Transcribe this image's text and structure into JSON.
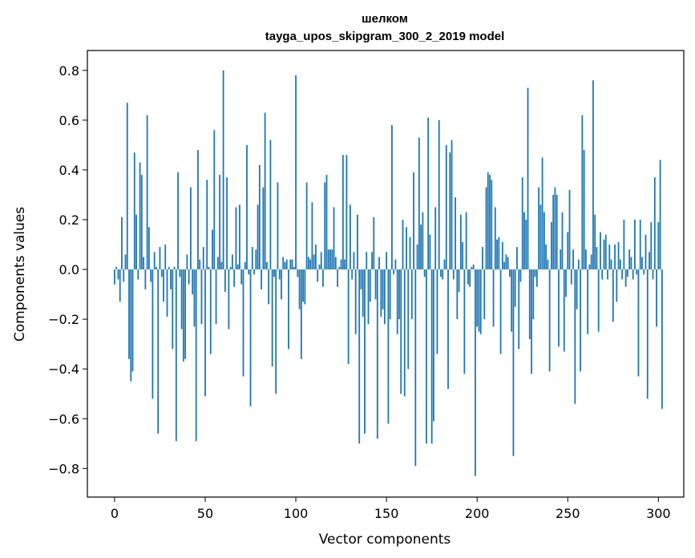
{
  "chart_data": {
    "type": "bar",
    "title": "шелком",
    "subtitle": "tayga_upos_skipgram_300_2_2019 model",
    "xlabel": "Vector components",
    "ylabel": "Components values",
    "xlim": [
      -15,
      314
    ],
    "ylim": [
      -0.915,
      0.88
    ],
    "xticks": [
      0,
      50,
      100,
      150,
      200,
      250,
      300
    ],
    "yticks": [
      -0.8,
      -0.6,
      -0.4,
      -0.2,
      0.0,
      0.2,
      0.4,
      0.6,
      0.8
    ],
    "ytick_labels": [
      "−0.8",
      "−0.6",
      "−0.4",
      "−0.2",
      "0.0",
      "0.2",
      "0.4",
      "0.6",
      "0.8"
    ],
    "grid": false,
    "legend": "none",
    "bar_color": "#1f77b4",
    "values": [
      -0.06,
      0.01,
      -0.04,
      -0.13,
      0.21,
      -0.05,
      0.06,
      0.67,
      -0.36,
      -0.45,
      -0.41,
      0.47,
      0.22,
      -0.04,
      0.43,
      0.38,
      0.05,
      -0.08,
      0.62,
      0.17,
      -0.05,
      -0.52,
      0.07,
      0.01,
      -0.66,
      0.09,
      -0.03,
      -0.13,
      0.1,
      -0.19,
      0.01,
      -0.08,
      -0.32,
      0.01,
      -0.69,
      0.39,
      -0.03,
      -0.24,
      -0.37,
      -0.36,
      0.06,
      -0.06,
      0.33,
      -0.1,
      -0.23,
      -0.69,
      0.48,
      0.04,
      -0.22,
      0.09,
      -0.51,
      0.36,
      0.01,
      -0.34,
      0.16,
      0.56,
      -0.22,
      0.05,
      0.38,
      0.03,
      0.8,
      -0.09,
      0.37,
      -0.24,
      0.01,
      0.06,
      -0.07,
      0.25,
      0.02,
      0.26,
      -0.06,
      -0.43,
      0.03,
      0.5,
      -0.02,
      -0.55,
      0.09,
      -0.02,
      0.08,
      0.26,
      0.42,
      -0.08,
      0.33,
      0.63,
      0.03,
      -0.14,
      0.52,
      -0.39,
      -0.03,
      -0.5,
      0.35,
      -0.04,
      -0.12,
      0.05,
      0.03,
      0.04,
      -0.32,
      0.04,
      0.04,
      0.01,
      0.78,
      -0.03,
      -0.16,
      -0.36,
      -0.13,
      -0.14,
      0.35,
      0.05,
      0.04,
      0.27,
      0.06,
      0.1,
      -0.05,
      0.02,
      0.07,
      -0.07,
      0.35,
      0.38,
      0.08,
      0.08,
      0.08,
      0.25,
      0.05,
      -0.07,
      0.01,
      0.04,
      0.46,
      0.04,
      0.46,
      -0.38,
      0.26,
      -0.04,
      0.07,
      -0.26,
      0.22,
      -0.7,
      -0.08,
      -0.19,
      -0.66,
      0.07,
      -0.22,
      -0.13,
      0.07,
      0.21,
      -0.12,
      -0.68,
      0.05,
      -0.19,
      -0.16,
      -0.22,
      0.07,
      -0.62,
      -0.2,
      0.58,
      -0.02,
      0.04,
      -0.26,
      -0.2,
      -0.5,
      0.2,
      -0.51,
      0.17,
      -0.4,
      0.13,
      -0.2,
      0.39,
      -0.79,
      0.1,
      0.53,
      0.18,
      0.23,
      -0.03,
      -0.7,
      0.61,
      0.14,
      -0.7,
      -0.61,
      0.25,
      -0.34,
      0.6,
      -0.03,
      -0.04,
      0.04,
      0.5,
      -0.48,
      0.47,
      0.52,
      -0.04,
      0.29,
      -0.2,
      -0.09,
      0.22,
      0.11,
      -0.42,
      0.23,
      -0.06,
      -0.07,
      0.01,
      0.02,
      -0.83,
      -0.23,
      -0.25,
      -0.26,
      0.09,
      -0.2,
      0.33,
      0.39,
      0.38,
      0.36,
      -0.23,
      0.25,
      0.12,
      0.13,
      -0.34,
      0.11,
      0.03,
      0.06,
      0.05,
      -0.03,
      -0.25,
      -0.75,
      -0.15,
      0.09,
      -0.32,
      -0.05,
      0.37,
      0.23,
      0.2,
      0.73,
      -0.28,
      -0.42,
      -0.2,
      -0.03,
      -0.07,
      0.33,
      0.26,
      0.45,
      0.23,
      0.1,
      0.04,
      -0.41,
      0.19,
      0.3,
      0.33,
      0.3,
      -0.31,
      0.08,
      0.23,
      -0.33,
      -0.11,
      0.15,
      0.32,
      -0.06,
      0.08,
      -0.54,
      -0.16,
      0.04,
      -0.41,
      0.62,
      0.48,
      0.08,
      -0.26,
      0.02,
      0.06,
      0.76,
      0.22,
      0.09,
      -0.25,
      0.15,
      -0.04,
      0.12,
      0.14,
      -0.04,
      0.1,
      0.04,
      -0.21,
      0.1,
      -0.13,
      0.11,
      0.04,
      -0.04,
      0.2,
      -0.07,
      -0.03,
      0.08,
      0.05,
      -0.04,
      0.2,
      -0.02,
      -0.43,
      0.2,
      0.05,
      -0.02,
      0.14,
      -0.52,
      0.07,
      0.19,
      -0.04,
      0.37,
      -0.23,
      0.19,
      0.44,
      -0.56
    ]
  }
}
